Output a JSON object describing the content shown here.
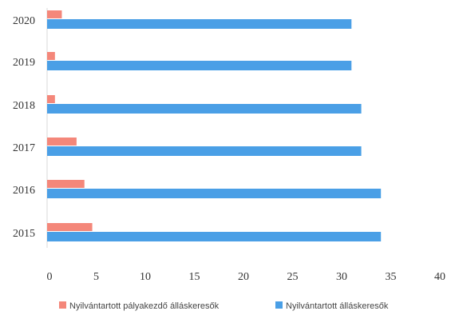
{
  "chart_data": {
    "type": "bar",
    "orientation": "horizontal",
    "categories": [
      "2020",
      "2019",
      "2018",
      "2017",
      "2016",
      "2015"
    ],
    "series": [
      {
        "name": "Nyilvántartott pályakezdő álláskeresők",
        "values": [
          1.5,
          0.8,
          0.8,
          3.0,
          3.8,
          4.6
        ],
        "color": "#f4877a"
      },
      {
        "name": "Nyilvántartott álláskeresők",
        "values": [
          31.0,
          31.0,
          32.0,
          32.0,
          34.0,
          34.0
        ],
        "color": "#4a9fe6"
      }
    ],
    "x_ticks": [
      "0",
      "5",
      "10",
      "15",
      "20",
      "25",
      "30",
      "35",
      "40"
    ],
    "xlim": [
      0,
      40
    ],
    "title": "",
    "xlabel": "",
    "ylabel": "",
    "grid": false,
    "legend_position": "bottom"
  }
}
